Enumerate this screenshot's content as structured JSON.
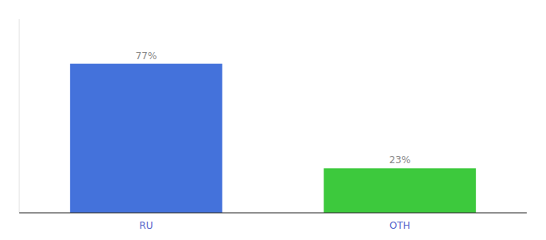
{
  "chart_data": {
    "type": "bar",
    "categories": [
      "RU",
      "OTH"
    ],
    "values": [
      77,
      23
    ],
    "value_labels": [
      "77%",
      "23%"
    ],
    "colors": [
      "#4472db",
      "#3dc93d"
    ],
    "ylim": [
      0,
      100
    ],
    "data_labels": true,
    "tick_labels": "x"
  }
}
